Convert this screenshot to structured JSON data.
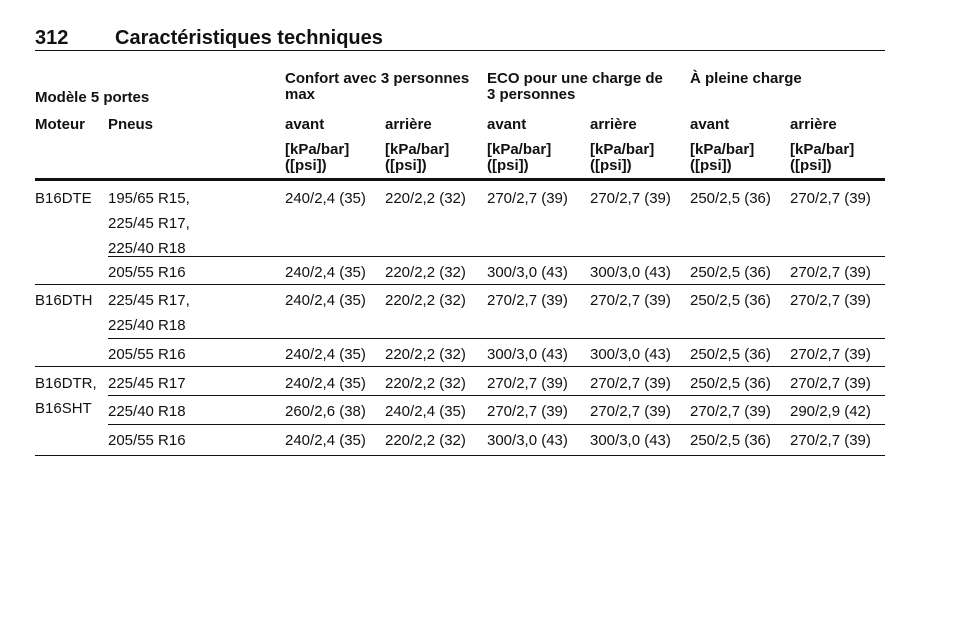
{
  "header": {
    "page_number": "312",
    "title": "Caractéristiques techniques"
  },
  "table": {
    "model_label": "Modèle 5 portes",
    "groups": [
      "Confort avec 3 personnes\nmax",
      "ECO pour une charge de\n3 personnes",
      "À pleine charge"
    ],
    "columns": [
      "Moteur",
      "Pneus",
      "avant",
      "arrière",
      "avant",
      "arrière",
      "avant",
      "arrière"
    ],
    "units": [
      "[kPa/bar]\n([psi])",
      "[kPa/bar]\n([psi])",
      "[kPa/bar]\n([psi])",
      "[kPa/bar]\n([psi])",
      "[kPa/bar]\n([psi])",
      "[kPa/bar]\n([psi])"
    ],
    "rows": [
      {
        "engine": "B16DTE",
        "subrows": [
          {
            "tires": "195/65 R15,\n225/45 R17,\n225/40 R18",
            "values": [
              "240/2,4 (35)",
              "220/2,2 (32)",
              "270/2,7 (39)",
              "270/2,7 (39)",
              "250/2,5 (36)",
              "270/2,7 (39)"
            ]
          },
          {
            "tires": "205/55 R16",
            "values": [
              "240/2,4 (35)",
              "220/2,2 (32)",
              "300/3,0 (43)",
              "300/3,0 (43)",
              "250/2,5 (36)",
              "270/2,7 (39)"
            ]
          }
        ]
      },
      {
        "engine": "B16DTH",
        "subrows": [
          {
            "tires": "225/45 R17,\n225/40 R18",
            "values": [
              "240/2,4 (35)",
              "220/2,2 (32)",
              "270/2,7 (39)",
              "270/2,7 (39)",
              "250/2,5 (36)",
              "270/2,7 (39)"
            ]
          },
          {
            "tires": "205/55 R16",
            "values": [
              "240/2,4 (35)",
              "220/2,2 (32)",
              "300/3,0 (43)",
              "300/3,0 (43)",
              "250/2,5 (36)",
              "270/2,7 (39)"
            ]
          }
        ]
      },
      {
        "engine": "B16DTR,\nB16SHT",
        "subrows": [
          {
            "tires": "225/45 R17",
            "values": [
              "240/2,4 (35)",
              "220/2,2 (32)",
              "270/2,7 (39)",
              "270/2,7 (39)",
              "250/2,5 (36)",
              "270/2,7 (39)"
            ]
          },
          {
            "tires": "225/40 R18",
            "values": [
              "260/2,6 (38)",
              "240/2,4 (35)",
              "270/2,7 (39)",
              "270/2,7 (39)",
              "270/2,7 (39)",
              "290/2,9 (42)"
            ]
          },
          {
            "tires": "205/55 R16",
            "values": [
              "240/2,4 (35)",
              "220/2,2 (32)",
              "300/3,0 (43)",
              "300/3,0 (43)",
              "250/2,5 (36)",
              "270/2,7 (39)"
            ]
          }
        ]
      }
    ]
  }
}
